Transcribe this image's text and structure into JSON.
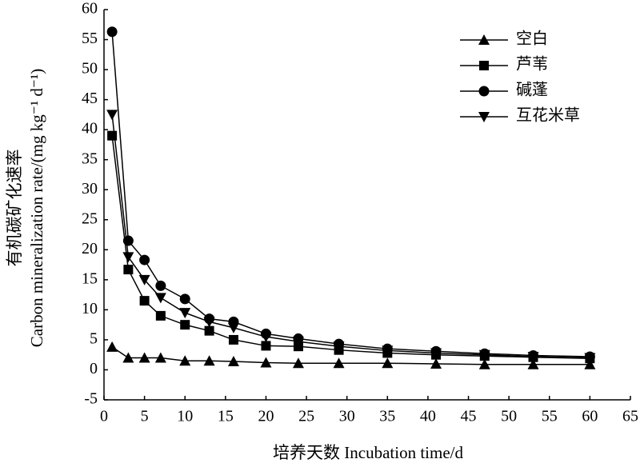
{
  "chart_data": {
    "type": "line",
    "xlabel": "培养天数 Incubation time/d",
    "ylabel": [
      "有机碳矿化速率",
      "Carbon mineralization rate/(mg kg⁻¹ d⁻¹)"
    ],
    "x": [
      1,
      3,
      5,
      7,
      10,
      13,
      16,
      20,
      24,
      29,
      35,
      41,
      47,
      53,
      60
    ],
    "series": [
      {
        "name": "空白",
        "color": "#000000",
        "marker": "triangle-up",
        "values": [
          3.8,
          2.0,
          2.0,
          2.0,
          1.5,
          1.5,
          1.4,
          1.2,
          1.1,
          1.1,
          1.1,
          1.0,
          0.9,
          0.9,
          0.9
        ]
      },
      {
        "name": "芦苇",
        "color": "#000000",
        "marker": "square",
        "values": [
          39,
          16.7,
          11.5,
          9,
          7.5,
          6.5,
          5,
          4,
          3.9,
          3.3,
          2.8,
          2.5,
          2.3,
          2.1,
          1.9
        ]
      },
      {
        "name": "碱蓬",
        "color": "#000000",
        "marker": "circle",
        "values": [
          56.3,
          21.5,
          18.3,
          14,
          11.8,
          8.5,
          8,
          6,
          5.2,
          4.3,
          3.5,
          3.1,
          2.7,
          2.4,
          2.2
        ]
      },
      {
        "name": "互花米草",
        "color": "#000000",
        "marker": "triangle-down",
        "values": [
          42.5,
          18.8,
          15,
          12,
          9.5,
          8,
          7,
          5.5,
          4.7,
          3.9,
          3.2,
          2.8,
          2.5,
          2.2,
          2.0
        ]
      }
    ],
    "xlim": [
      0,
      65
    ],
    "xticks": [
      0,
      5,
      10,
      15,
      20,
      25,
      30,
      35,
      40,
      45,
      50,
      55,
      60,
      65
    ],
    "ylim": [
      -5,
      60
    ],
    "yticks": [
      -5,
      0,
      5,
      10,
      15,
      20,
      25,
      30,
      35,
      40,
      45,
      50,
      55,
      60
    ],
    "grid": false,
    "legend": "upper right"
  }
}
